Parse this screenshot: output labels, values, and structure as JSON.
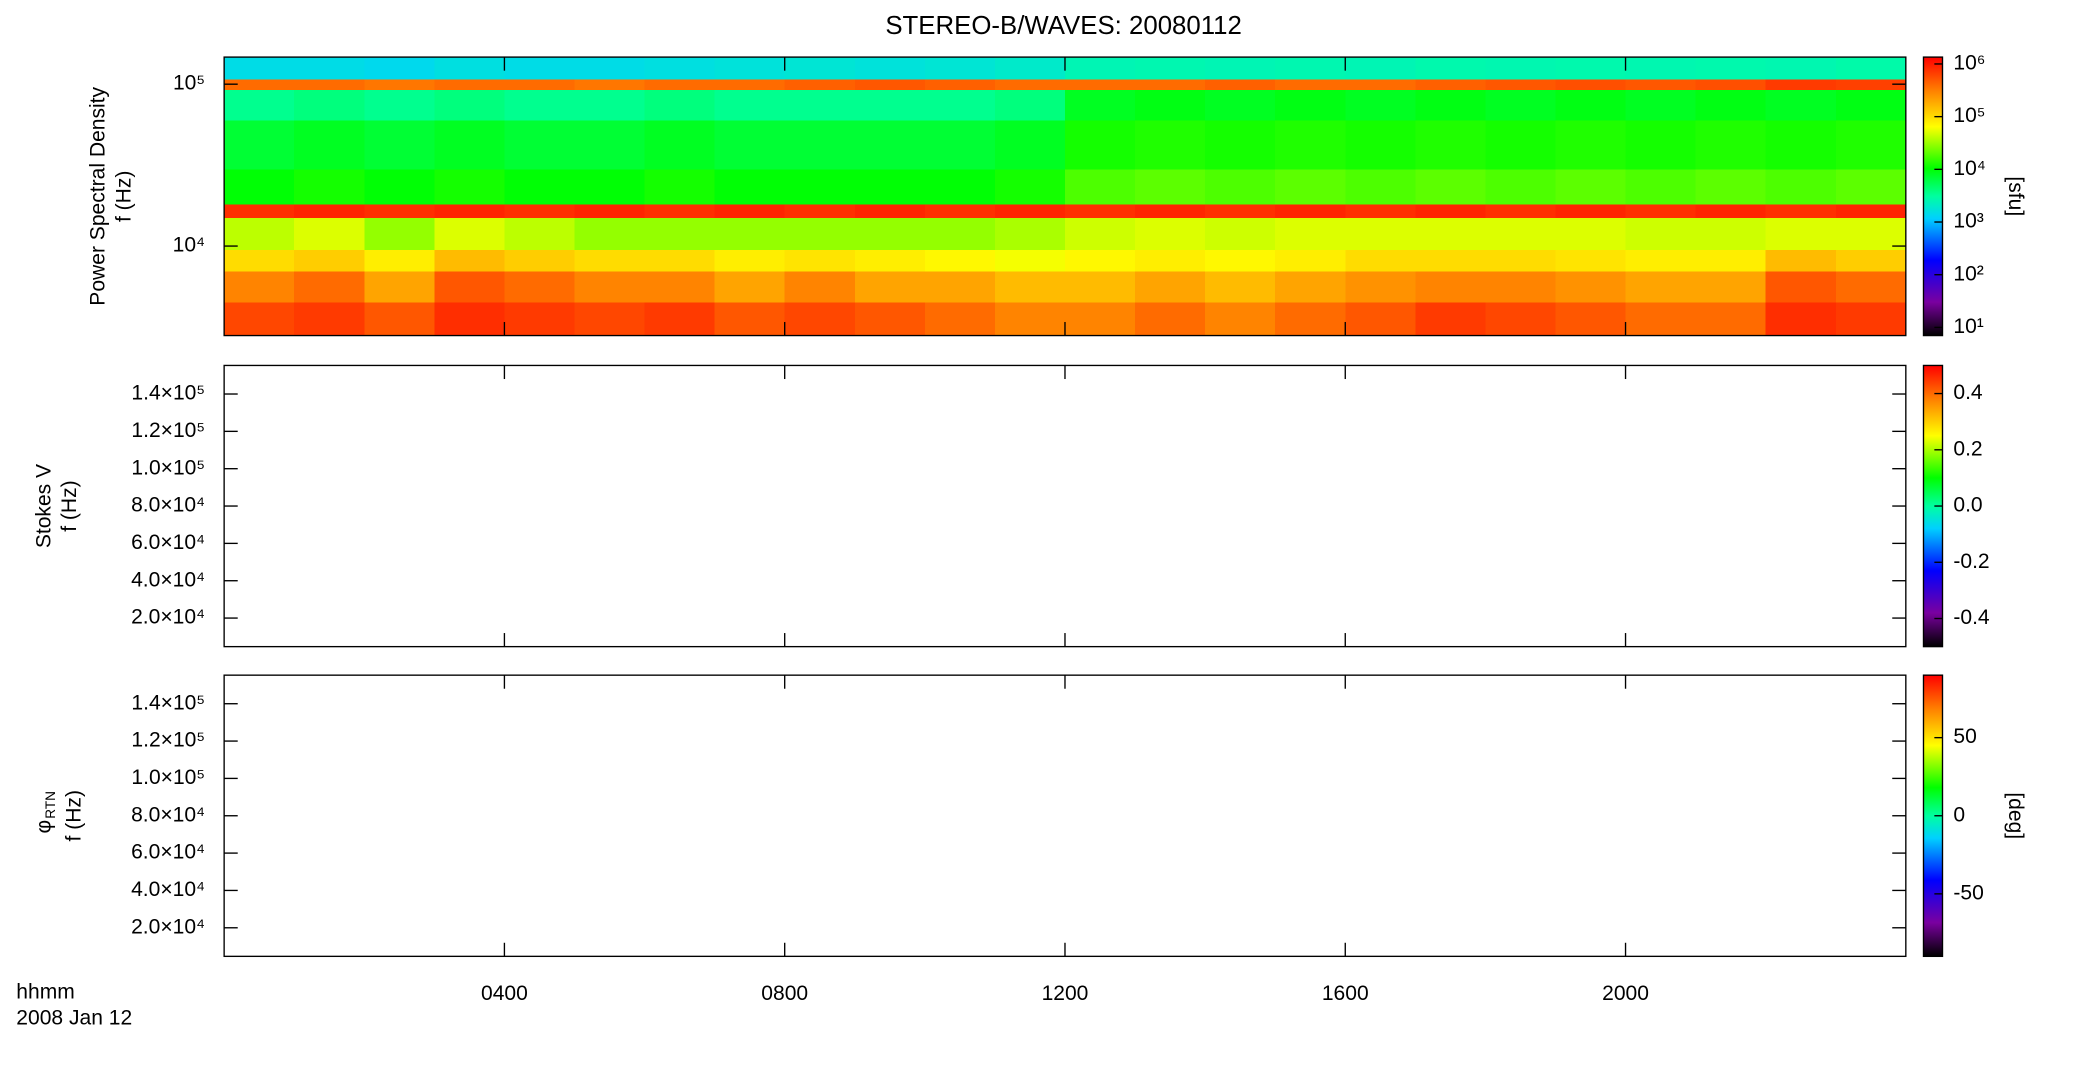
{
  "chart_data": [
    {
      "type": "heatmap",
      "title": "STEREO-B/WAVES: 20080112",
      "ylabel": [
        "Power Spectral Density",
        "f (Hz)"
      ],
      "yscale": "log",
      "ylim": [
        2800,
        147000
      ],
      "yticks": [
        {
          "value": 10000,
          "label": "10⁴"
        },
        {
          "value": 100000,
          "label": "10⁵"
        }
      ],
      "colormap": "rainbow",
      "x_bins": [
        0,
        1,
        2,
        3,
        4,
        5,
        6,
        7,
        8,
        9,
        10,
        11,
        12,
        13,
        14,
        15,
        16,
        17,
        18,
        19,
        20,
        21,
        22,
        23,
        24
      ],
      "y_bins": [
        2800,
        4500,
        7000,
        9500,
        15000,
        18200,
        30000,
        60000,
        92600,
        108000,
        147000
      ],
      "values": [
        [
          600000,
          700000,
          500000,
          800000,
          700000,
          600000,
          700000,
          500000,
          600000,
          500000,
          400000,
          300000,
          300000,
          400000,
          300000,
          400000,
          500000,
          700000,
          600000,
          500000,
          400000,
          400000,
          800000,
          700000
        ],
        [
          300000,
          400000,
          200000,
          500000,
          400000,
          300000,
          300000,
          200000,
          300000,
          200000,
          200000,
          150000,
          150000,
          200000,
          150000,
          200000,
          250000,
          300000,
          300000,
          250000,
          200000,
          200000,
          500000,
          400000
        ],
        [
          100000,
          120000,
          80000,
          150000,
          120000,
          100000,
          100000,
          80000,
          90000,
          80000,
          70000,
          60000,
          70000,
          80000,
          70000,
          80000,
          100000,
          100000,
          100000,
          90000,
          80000,
          80000,
          150000,
          120000
        ],
        [
          40000,
          50000,
          30000,
          50000,
          40000,
          30000,
          30000,
          30000,
          30000,
          30000,
          30000,
          35000,
          45000,
          50000,
          45000,
          50000,
          50000,
          50000,
          50000,
          50000,
          45000,
          45000,
          50000,
          50000
        ],
        [
          800000,
          900000,
          800000,
          900000,
          800000,
          900000,
          800000,
          900000,
          800000,
          900000,
          800000,
          900000,
          800000,
          900000,
          800000,
          900000,
          800000,
          900000,
          800000,
          900000,
          800000,
          900000,
          800000,
          900000
        ],
        [
          10000,
          12000,
          10000,
          12000,
          10000,
          10000,
          12000,
          10000,
          10000,
          10000,
          10000,
          12000,
          18000,
          20000,
          18000,
          20000,
          18000,
          20000,
          18000,
          20000,
          18000,
          20000,
          18000,
          20000
        ],
        [
          7000,
          8000,
          7000,
          8000,
          7000,
          7000,
          8000,
          7000,
          7000,
          7000,
          7000,
          8000,
          12000,
          13000,
          12000,
          13000,
          12000,
          13000,
          12000,
          13000,
          12000,
          13000,
          12000,
          13000
        ],
        [
          3500,
          4000,
          3500,
          4000,
          3500,
          3500,
          4000,
          3500,
          3500,
          3500,
          3500,
          4000,
          8000,
          9000,
          8000,
          9000,
          8000,
          9000,
          8000,
          9000,
          8000,
          9000,
          8000,
          9000
        ],
        [
          400000,
          400000,
          350000,
          400000,
          400000,
          350000,
          400000,
          400000,
          450000,
          500000,
          450000,
          400000,
          400000,
          400000,
          450000,
          400000,
          400000,
          450000,
          500000,
          550000,
          500000,
          550000,
          700000,
          650000
        ],
        [
          1500,
          1500,
          1400,
          1600,
          1500,
          1500,
          1600,
          1700,
          1800,
          1700,
          1800,
          2000,
          2500,
          2600,
          2500,
          2600,
          2500,
          2700,
          2600,
          2700,
          2600,
          2700,
          2600,
          2800
        ]
      ],
      "colorbar": {
        "scale": "log",
        "lim": [
          7,
          1350000
        ],
        "label": "[sfu]",
        "ticks": [
          {
            "value": 10,
            "label": "10¹"
          },
          {
            "value": 100,
            "label": "10²"
          },
          {
            "value": 1000,
            "label": "10³"
          },
          {
            "value": 10000,
            "label": "10⁴"
          },
          {
            "value": 100000,
            "label": "10⁵"
          },
          {
            "value": 1000000,
            "label": "10⁶"
          }
        ]
      }
    },
    {
      "type": "heatmap",
      "ylabel": [
        "Stokes V",
        "f (Hz)"
      ],
      "yscale": "linear",
      "ylim": [
        4700,
        155300
      ],
      "yticks": [
        {
          "value": 20000,
          "label": "2.0×10⁴"
        },
        {
          "value": 40000,
          "label": "4.0×10⁴"
        },
        {
          "value": 60000,
          "label": "6.0×10⁴"
        },
        {
          "value": 80000,
          "label": "8.0×10⁴"
        },
        {
          "value": 100000,
          "label": "1.0×10⁵"
        },
        {
          "value": 120000,
          "label": "1.2×10⁵"
        },
        {
          "value": 140000,
          "label": "1.4×10⁵"
        }
      ],
      "colormap": "rainbow",
      "colorbar": {
        "scale": "linear",
        "lim": [
          -0.5,
          0.5
        ],
        "ticks": [
          -0.4,
          -0.2,
          {
            "value": 0,
            "label": "0.0"
          },
          0.2,
          0.4
        ]
      }
    },
    {
      "type": "heatmap",
      "ylabel_symbol": "φ",
      "ylabel_subscript": "RTN",
      "ylabel": [
        "f (Hz)"
      ],
      "yscale": "linear",
      "ylim": [
        4700,
        155300
      ],
      "yticks": [
        {
          "value": 20000,
          "label": "2.0×10⁴"
        },
        {
          "value": 40000,
          "label": "4.0×10⁴"
        },
        {
          "value": 60000,
          "label": "6.0×10⁴"
        },
        {
          "value": 80000,
          "label": "8.0×10⁴"
        },
        {
          "value": 100000,
          "label": "1.0×10⁵"
        },
        {
          "value": 120000,
          "label": "1.2×10⁵"
        },
        {
          "value": 140000,
          "label": "1.4×10⁵"
        }
      ],
      "colormap": "rainbow",
      "colorbar": {
        "scale": "linear",
        "lim": [
          -90,
          90
        ],
        "label": "[deg]",
        "ticks": [
          -50,
          0,
          50
        ]
      },
      "xlim": [
        0,
        24
      ],
      "xticks": [
        {
          "value": 4,
          "label": "0400"
        },
        {
          "value": 8,
          "label": "0800"
        },
        {
          "value": 12,
          "label": "1200"
        },
        {
          "value": 16,
          "label": "1600"
        },
        {
          "value": 20,
          "label": "2000"
        }
      ],
      "xlabel": [
        "hhmm",
        "2008 Jan 12"
      ]
    }
  ]
}
